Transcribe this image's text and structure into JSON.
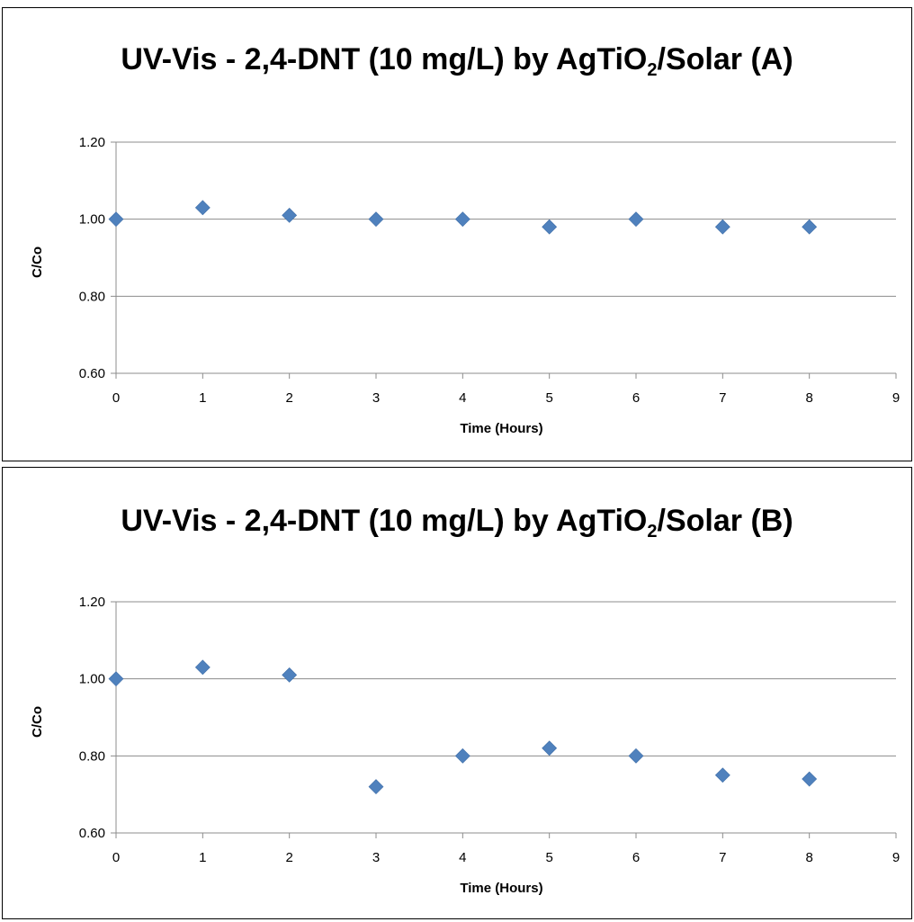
{
  "chart_data": [
    {
      "type": "scatter",
      "title_main": "UV-Vis - 2,4-DNT (10 mg/L) by AgTiO",
      "title_sub": "2",
      "title_tail": "/Solar (A)",
      "xlabel": "Time (Hours)",
      "ylabel": "C/Co",
      "xlim": [
        0,
        9
      ],
      "ylim": [
        0.6,
        1.2
      ],
      "x_ticks": [
        "0",
        "1",
        "2",
        "3",
        "4",
        "5",
        "6",
        "7",
        "8",
        "9"
      ],
      "y_ticks": [
        "0.60",
        "0.80",
        "1.00",
        "1.20"
      ],
      "grid": "horizontal",
      "marker": "diamond",
      "color": "#4f81bd",
      "x": [
        0,
        1,
        2,
        3,
        4,
        5,
        6,
        7,
        8
      ],
      "y": [
        1.0,
        1.03,
        1.01,
        1.0,
        1.0,
        0.98,
        1.0,
        0.98,
        0.98
      ]
    },
    {
      "type": "scatter",
      "title_main": "UV-Vis - 2,4-DNT (10 mg/L) by AgTiO",
      "title_sub": "2",
      "title_tail": "/Solar (B)",
      "xlabel": "Time (Hours)",
      "ylabel": "C/Co",
      "xlim": [
        0,
        9
      ],
      "ylim": [
        0.6,
        1.2
      ],
      "x_ticks": [
        "0",
        "1",
        "2",
        "3",
        "4",
        "5",
        "6",
        "7",
        "8",
        "9"
      ],
      "y_ticks": [
        "0.60",
        "0.80",
        "1.00",
        "1.20"
      ],
      "grid": "horizontal",
      "marker": "diamond",
      "color": "#4f81bd",
      "x": [
        0,
        1,
        2,
        3,
        4,
        5,
        6,
        7,
        8
      ],
      "y": [
        1.0,
        1.03,
        1.01,
        0.72,
        0.8,
        0.82,
        0.8,
        0.75,
        0.74
      ]
    }
  ]
}
